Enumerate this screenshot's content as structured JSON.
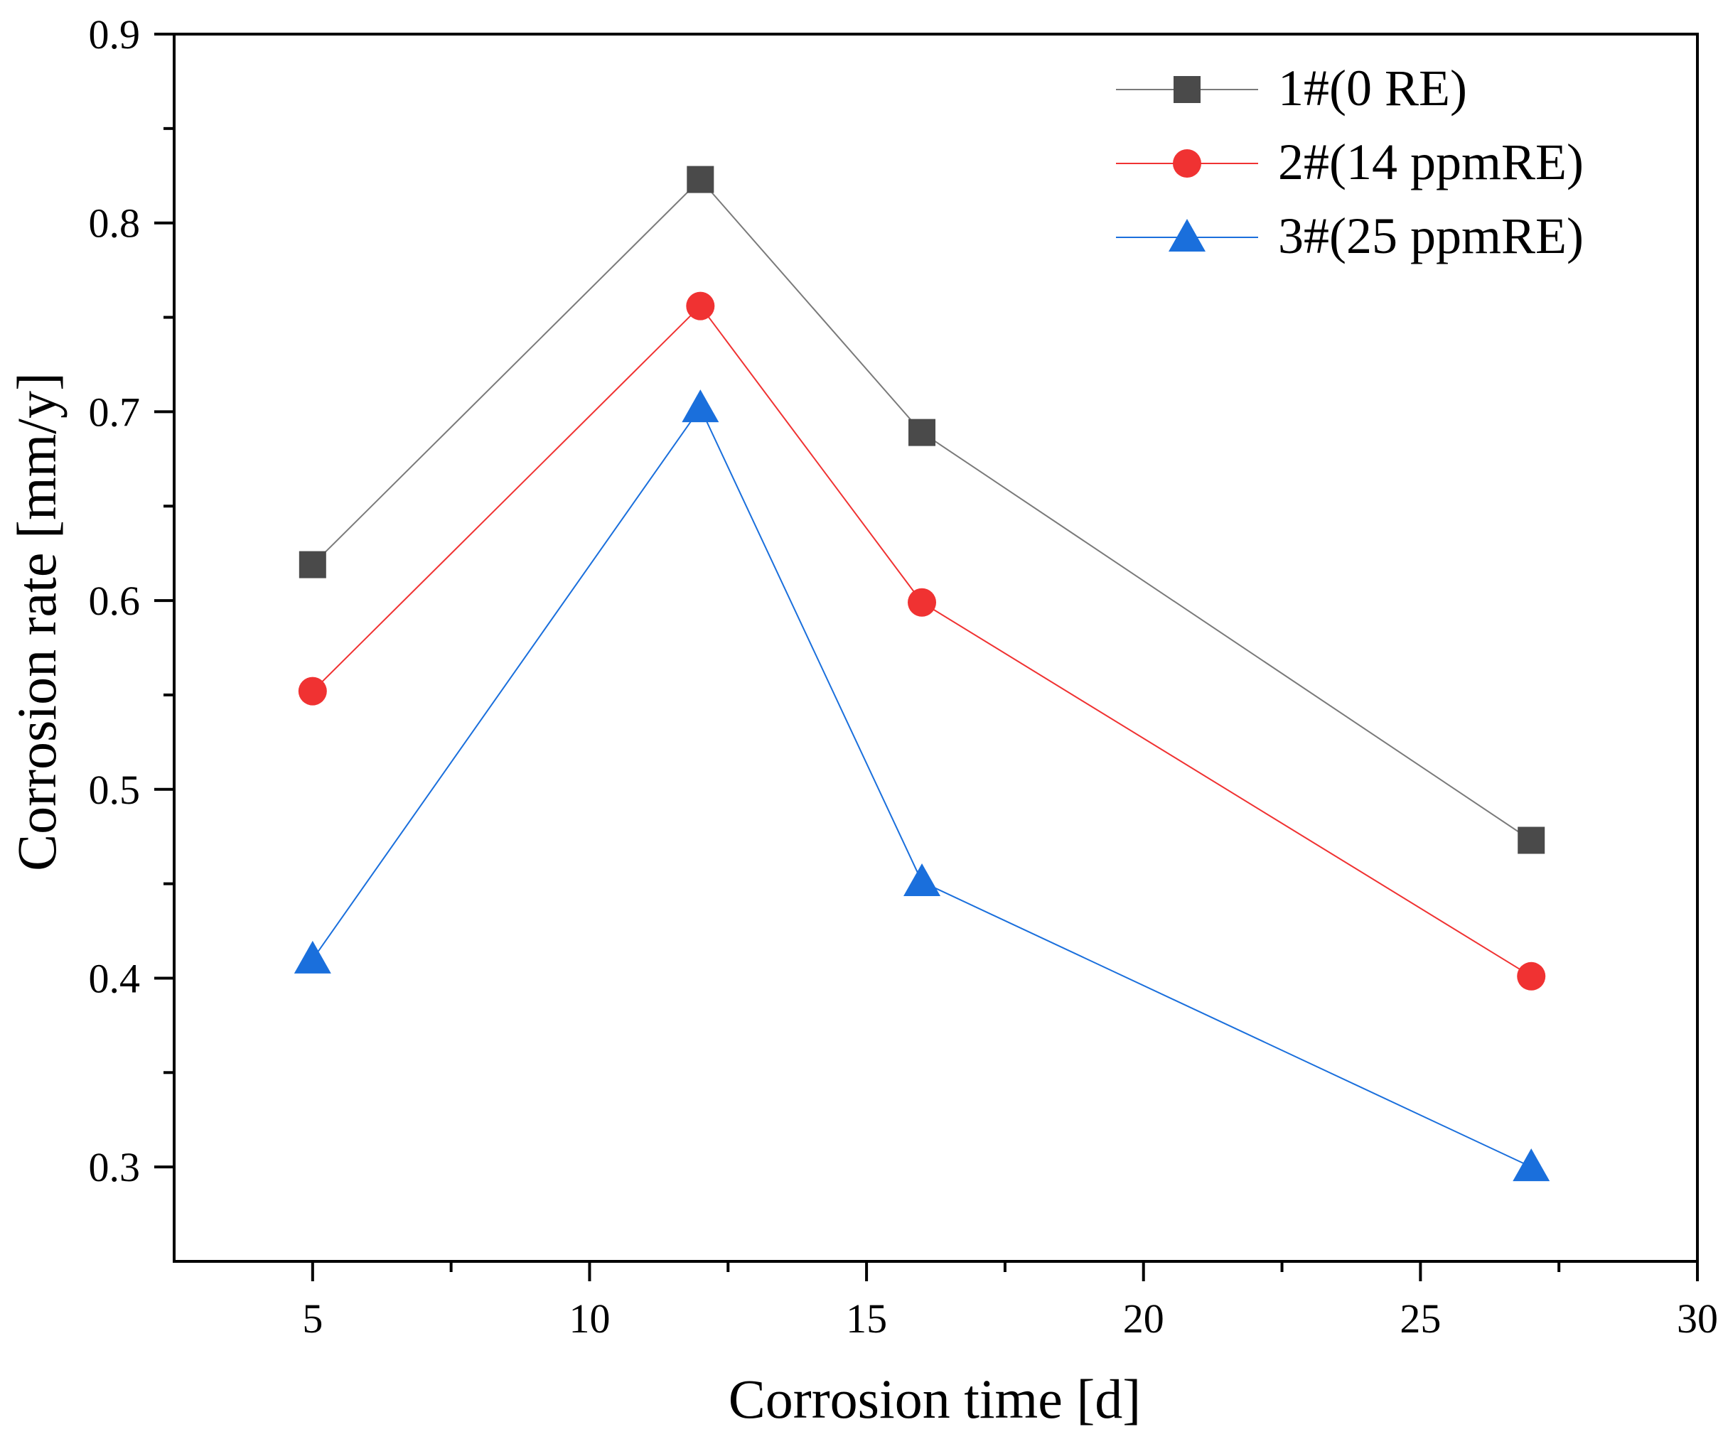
{
  "chart_data": {
    "type": "line",
    "xlabel": "Corrosion time [d]",
    "ylabel": "Corrosion rate [mm/y]",
    "xlim": [
      2.5,
      30
    ],
    "ylim": [
      0.25,
      0.9
    ],
    "xticks": [
      5,
      10,
      15,
      20,
      25,
      30
    ],
    "xtick_labels": [
      "5",
      "10",
      "15",
      "20",
      "25",
      "30"
    ],
    "yticks": [
      0.3,
      0.4,
      0.5,
      0.6,
      0.7,
      0.8,
      0.9
    ],
    "ytick_labels": [
      "0.3",
      "0.4",
      "0.5",
      "0.6",
      "0.7",
      "0.8",
      "0.9"
    ],
    "x": [
      5,
      12,
      16,
      27
    ],
    "legend_position": "top-right",
    "grid": false,
    "series": [
      {
        "name": "1#(0 RE)",
        "marker": "square",
        "color": "#4a4a4a",
        "line_color": "#7a7a7a",
        "values": [
          0.619,
          0.823,
          0.689,
          0.473
        ]
      },
      {
        "name": "2#(14 ppmRE)",
        "marker": "circle",
        "color": "#f03232",
        "line_color": "#f03232",
        "values": [
          0.552,
          0.756,
          0.599,
          0.401
        ]
      },
      {
        "name": "3#(25 ppmRE)",
        "marker": "triangle",
        "color": "#1a6fdc",
        "line_color": "#1a6fdc",
        "values": [
          0.41,
          0.702,
          0.451,
          0.3
        ]
      }
    ]
  }
}
